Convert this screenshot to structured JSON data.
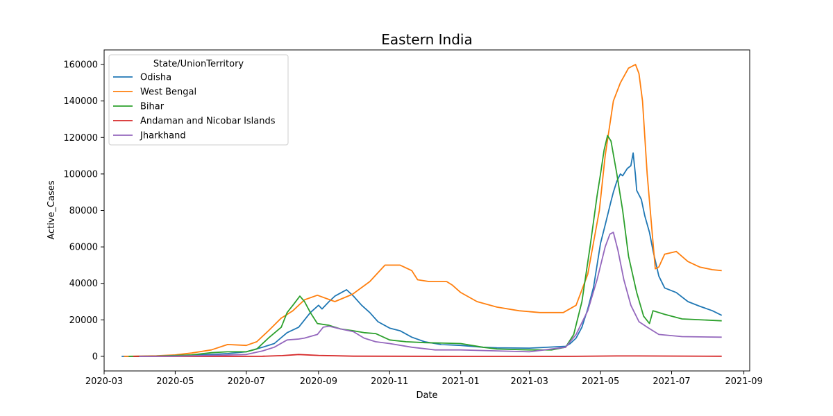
{
  "chart_data": {
    "type": "line",
    "title": "Eastern India",
    "xlabel": "Date",
    "ylabel": "Active_Cases",
    "xlim": [
      "2020-03-01",
      "2021-09-06"
    ],
    "ylim": [
      -8000,
      168000
    ],
    "x_ticks": [
      "2020-03-01",
      "2020-05-01",
      "2020-07-01",
      "2020-09-01",
      "2020-11-01",
      "2021-01-01",
      "2021-03-01",
      "2021-05-01",
      "2021-07-01",
      "2021-09-01"
    ],
    "x_tick_labels": [
      "2020-03",
      "2020-05",
      "2020-07",
      "2020-09",
      "2020-11",
      "2021-01",
      "2021-03",
      "2021-05",
      "2021-07",
      "2021-09"
    ],
    "y_ticks": [
      0,
      20000,
      40000,
      60000,
      80000,
      100000,
      120000,
      140000,
      160000
    ],
    "y_tick_labels": [
      "0",
      "20000",
      "40000",
      "60000",
      "80000",
      "100000",
      "120000",
      "140000",
      "160000"
    ],
    "grid": false,
    "legend": {
      "title": "State/UnionTerritory",
      "placement": "top-left"
    },
    "series": [
      {
        "name": "Odisha",
        "color": "#1f77b4",
        "points": [
          [
            "2020-03-16",
            0
          ],
          [
            "2020-04-15",
            100
          ],
          [
            "2020-05-15",
            500
          ],
          [
            "2020-06-15",
            1500
          ],
          [
            "2020-07-01",
            2500
          ],
          [
            "2020-07-15",
            5000
          ],
          [
            "2020-07-25",
            7000
          ],
          [
            "2020-08-05",
            13000
          ],
          [
            "2020-08-15",
            16000
          ],
          [
            "2020-08-25",
            24000
          ],
          [
            "2020-09-01",
            28000
          ],
          [
            "2020-09-04",
            26000
          ],
          [
            "2020-09-10",
            30000
          ],
          [
            "2020-09-15",
            33000
          ],
          [
            "2020-09-25",
            36500
          ],
          [
            "2020-10-01",
            33000
          ],
          [
            "2020-10-08",
            28000
          ],
          [
            "2020-10-15",
            24000
          ],
          [
            "2020-10-22",
            19000
          ],
          [
            "2020-11-01",
            15500
          ],
          [
            "2020-11-10",
            14000
          ],
          [
            "2020-11-20",
            10500
          ],
          [
            "2020-12-01",
            8000
          ],
          [
            "2020-12-15",
            6500
          ],
          [
            "2021-01-01",
            6000
          ],
          [
            "2021-01-20",
            5000
          ],
          [
            "2021-02-01",
            4700
          ],
          [
            "2021-03-01",
            4500
          ],
          [
            "2021-04-01",
            5500
          ],
          [
            "2021-04-05",
            7000
          ],
          [
            "2021-04-10",
            10000
          ],
          [
            "2021-04-15",
            16000
          ],
          [
            "2021-04-20",
            26000
          ],
          [
            "2021-04-25",
            38000
          ],
          [
            "2021-05-01",
            62000
          ],
          [
            "2021-05-05",
            72000
          ],
          [
            "2021-05-10",
            85000
          ],
          [
            "2021-05-12",
            90000
          ],
          [
            "2021-05-15",
            96000
          ],
          [
            "2021-05-18",
            100000
          ],
          [
            "2021-05-20",
            99000
          ],
          [
            "2021-05-24",
            103000
          ],
          [
            "2021-05-27",
            104500
          ],
          [
            "2021-05-29",
            111500
          ],
          [
            "2021-05-31",
            99000
          ],
          [
            "2021-06-01",
            91000
          ],
          [
            "2021-06-05",
            86000
          ],
          [
            "2021-06-08",
            77000
          ],
          [
            "2021-06-12",
            68000
          ],
          [
            "2021-06-15",
            58000
          ],
          [
            "2021-06-20",
            44000
          ],
          [
            "2021-06-25",
            37500
          ],
          [
            "2021-07-05",
            35000
          ],
          [
            "2021-07-15",
            30000
          ],
          [
            "2021-07-25",
            27500
          ],
          [
            "2021-08-05",
            25000
          ],
          [
            "2021-08-13",
            22500
          ]
        ]
      },
      {
        "name": "West Bengal",
        "color": "#ff7f0e",
        "points": [
          [
            "2020-03-18",
            0
          ],
          [
            "2020-04-15",
            300
          ],
          [
            "2020-05-01",
            800
          ],
          [
            "2020-05-15",
            1800
          ],
          [
            "2020-06-01",
            3500
          ],
          [
            "2020-06-15",
            6500
          ],
          [
            "2020-07-01",
            6000
          ],
          [
            "2020-07-10",
            8000
          ],
          [
            "2020-07-20",
            14000
          ],
          [
            "2020-07-31",
            21000
          ],
          [
            "2020-08-10",
            25000
          ],
          [
            "2020-08-20",
            31000
          ],
          [
            "2020-08-31",
            33500
          ],
          [
            "2020-09-15",
            30000
          ],
          [
            "2020-09-30",
            34000
          ],
          [
            "2020-10-15",
            41000
          ],
          [
            "2020-10-28",
            50000
          ],
          [
            "2020-11-10",
            50000
          ],
          [
            "2020-11-20",
            47000
          ],
          [
            "2020-11-25",
            42000
          ],
          [
            "2020-12-05",
            41000
          ],
          [
            "2020-12-20",
            41000
          ],
          [
            "2020-12-25",
            39000
          ],
          [
            "2021-01-01",
            35000
          ],
          [
            "2021-01-15",
            30000
          ],
          [
            "2021-02-01",
            27000
          ],
          [
            "2021-02-20",
            25000
          ],
          [
            "2021-03-10",
            24000
          ],
          [
            "2021-03-30",
            24000
          ],
          [
            "2021-04-10",
            28000
          ],
          [
            "2021-04-20",
            45000
          ],
          [
            "2021-04-30",
            80000
          ],
          [
            "2021-05-05",
            110000
          ],
          [
            "2021-05-12",
            140000
          ],
          [
            "2021-05-18",
            150000
          ],
          [
            "2021-05-25",
            158000
          ],
          [
            "2021-05-31",
            160000
          ],
          [
            "2021-06-03",
            155000
          ],
          [
            "2021-06-06",
            140000
          ],
          [
            "2021-06-10",
            100000
          ],
          [
            "2021-06-14",
            70000
          ],
          [
            "2021-06-17",
            48000
          ],
          [
            "2021-06-20",
            49000
          ],
          [
            "2021-06-25",
            56000
          ],
          [
            "2021-07-05",
            57500
          ],
          [
            "2021-07-15",
            52000
          ],
          [
            "2021-07-25",
            49000
          ],
          [
            "2021-08-05",
            47500
          ],
          [
            "2021-08-13",
            47000
          ]
        ]
      },
      {
        "name": "Bihar",
        "color": "#2ca02c",
        "points": [
          [
            "2020-03-22",
            0
          ],
          [
            "2020-04-15",
            100
          ],
          [
            "2020-05-15",
            800
          ],
          [
            "2020-06-01",
            2000
          ],
          [
            "2020-06-15",
            2500
          ],
          [
            "2020-07-01",
            2500
          ],
          [
            "2020-07-10",
            4000
          ],
          [
            "2020-07-20",
            10000
          ],
          [
            "2020-07-31",
            16000
          ],
          [
            "2020-08-05",
            24000
          ],
          [
            "2020-08-10",
            28000
          ],
          [
            "2020-08-16",
            33000
          ],
          [
            "2020-08-20",
            30000
          ],
          [
            "2020-08-25",
            24000
          ],
          [
            "2020-08-31",
            18000
          ],
          [
            "2020-09-10",
            17000
          ],
          [
            "2020-09-20",
            15000
          ],
          [
            "2020-10-01",
            14000
          ],
          [
            "2020-10-10",
            13000
          ],
          [
            "2020-10-20",
            12500
          ],
          [
            "2020-11-01",
            9000
          ],
          [
            "2020-11-15",
            8000
          ],
          [
            "2020-12-01",
            7500
          ],
          [
            "2021-01-01",
            7000
          ],
          [
            "2021-01-20",
            5000
          ],
          [
            "2021-02-01",
            4000
          ],
          [
            "2021-03-01",
            3500
          ],
          [
            "2021-03-20",
            3500
          ],
          [
            "2021-04-01",
            5000
          ],
          [
            "2021-04-08",
            12000
          ],
          [
            "2021-04-15",
            30000
          ],
          [
            "2021-04-22",
            60000
          ],
          [
            "2021-04-28",
            88000
          ],
          [
            "2021-05-01",
            100000
          ],
          [
            "2021-05-04",
            113000
          ],
          [
            "2021-05-07",
            121000
          ],
          [
            "2021-05-10",
            118000
          ],
          [
            "2021-05-15",
            100000
          ],
          [
            "2021-05-20",
            80000
          ],
          [
            "2021-05-25",
            55000
          ],
          [
            "2021-06-01",
            35000
          ],
          [
            "2021-06-07",
            22000
          ],
          [
            "2021-06-12",
            18000
          ],
          [
            "2021-06-15",
            25000
          ],
          [
            "2021-06-25",
            23000
          ],
          [
            "2021-07-10",
            20500
          ],
          [
            "2021-08-13",
            19500
          ]
        ]
      },
      {
        "name": "Andaman and Nicobar Islands",
        "color": "#d62728",
        "points": [
          [
            "2020-03-26",
            0
          ],
          [
            "2020-06-01",
            0
          ],
          [
            "2020-07-15",
            50
          ],
          [
            "2020-08-01",
            400
          ],
          [
            "2020-08-15",
            1000
          ],
          [
            "2020-09-01",
            500
          ],
          [
            "2020-10-01",
            100
          ],
          [
            "2021-01-01",
            0
          ],
          [
            "2021-04-01",
            0
          ],
          [
            "2021-05-15",
            200
          ],
          [
            "2021-06-01",
            200
          ],
          [
            "2021-08-13",
            50
          ]
        ]
      },
      {
        "name": "Jharkhand",
        "color": "#9467bd",
        "points": [
          [
            "2020-03-31",
            0
          ],
          [
            "2020-05-01",
            100
          ],
          [
            "2020-06-01",
            500
          ],
          [
            "2020-07-01",
            1000
          ],
          [
            "2020-07-15",
            3000
          ],
          [
            "2020-07-25",
            5000
          ],
          [
            "2020-08-05",
            9000
          ],
          [
            "2020-08-15",
            9500
          ],
          [
            "2020-08-20",
            10000
          ],
          [
            "2020-08-31",
            12000
          ],
          [
            "2020-09-05",
            16000
          ],
          [
            "2020-09-10",
            16500
          ],
          [
            "2020-09-20",
            15000
          ],
          [
            "2020-10-01",
            13500
          ],
          [
            "2020-10-10",
            10000
          ],
          [
            "2020-10-20",
            8000
          ],
          [
            "2020-11-01",
            7000
          ],
          [
            "2020-11-20",
            5000
          ],
          [
            "2020-12-10",
            3500
          ],
          [
            "2021-01-01",
            3500
          ],
          [
            "2021-02-01",
            3000
          ],
          [
            "2021-03-01",
            2500
          ],
          [
            "2021-04-01",
            5000
          ],
          [
            "2021-04-10",
            12000
          ],
          [
            "2021-04-20",
            25000
          ],
          [
            "2021-04-28",
            42000
          ],
          [
            "2021-05-05",
            60000
          ],
          [
            "2021-05-09",
            67000
          ],
          [
            "2021-05-12",
            68000
          ],
          [
            "2021-05-16",
            58000
          ],
          [
            "2021-05-21",
            42000
          ],
          [
            "2021-05-27",
            28000
          ],
          [
            "2021-06-03",
            19000
          ],
          [
            "2021-06-10",
            16000
          ],
          [
            "2021-06-20",
            12000
          ],
          [
            "2021-07-10",
            10800
          ],
          [
            "2021-08-13",
            10500
          ]
        ]
      }
    ]
  }
}
